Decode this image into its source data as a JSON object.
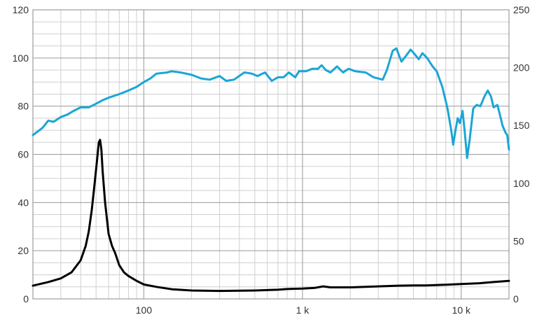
{
  "chart_data": {
    "type": "line",
    "title": "",
    "xlabel": "",
    "ylabel": "",
    "y2label": "",
    "x_scale": "log",
    "xlim": [
      20,
      20000
    ],
    "ylim": [
      0,
      120
    ],
    "y2lim": [
      0,
      250
    ],
    "grid": true,
    "legend": "none",
    "x_ticks": [
      100,
      1000,
      10000
    ],
    "x_tick_labels": [
      "100",
      "1 k",
      "10 k"
    ],
    "y_ticks": [
      0,
      20,
      40,
      60,
      80,
      100,
      120
    ],
    "y_tick_labels": [
      "0",
      "20",
      "40",
      "60",
      "80",
      "100",
      "120"
    ],
    "y2_ticks": [
      0,
      50,
      100,
      150,
      200,
      250
    ],
    "y2_tick_labels": [
      "0",
      "50",
      "100",
      "150",
      "200",
      "250"
    ],
    "series": [
      {
        "axis": "left",
        "color": "#1aa6d6",
        "points": [
          [
            20,
            68
          ],
          [
            23,
            71
          ],
          [
            25,
            74
          ],
          [
            27,
            73.5
          ],
          [
            30,
            75.5
          ],
          [
            33,
            76.5
          ],
          [
            36,
            78
          ],
          [
            40,
            79.5
          ],
          [
            45,
            79.5
          ],
          [
            50,
            81
          ],
          [
            55,
            82.5
          ],
          [
            60,
            83.5
          ],
          [
            70,
            85
          ],
          [
            80,
            86.5
          ],
          [
            90,
            88
          ],
          [
            100,
            90
          ],
          [
            110,
            91.5
          ],
          [
            120,
            93.5
          ],
          [
            140,
            94
          ],
          [
            150,
            94.5
          ],
          [
            170,
            94
          ],
          [
            200,
            93
          ],
          [
            230,
            91.5
          ],
          [
            260,
            91
          ],
          [
            300,
            92.5
          ],
          [
            330,
            90.5
          ],
          [
            370,
            91
          ],
          [
            430,
            94
          ],
          [
            480,
            93.5
          ],
          [
            520,
            92.5
          ],
          [
            580,
            94
          ],
          [
            640,
            90.5
          ],
          [
            700,
            92
          ],
          [
            760,
            92
          ],
          [
            820,
            94
          ],
          [
            900,
            92
          ],
          [
            950,
            94.5
          ],
          [
            1050,
            94.5
          ],
          [
            1150,
            95.5
          ],
          [
            1250,
            95.5
          ],
          [
            1320,
            97
          ],
          [
            1400,
            95
          ],
          [
            1500,
            94
          ],
          [
            1650,
            96.5
          ],
          [
            1800,
            94
          ],
          [
            1950,
            95.5
          ],
          [
            2150,
            94.5
          ],
          [
            2500,
            94
          ],
          [
            2800,
            92
          ],
          [
            3000,
            91.5
          ],
          [
            3200,
            91
          ],
          [
            3400,
            95
          ],
          [
            3700,
            103
          ],
          [
            3900,
            104
          ],
          [
            4200,
            98.5
          ],
          [
            4500,
            101
          ],
          [
            4800,
            103.5
          ],
          [
            5100,
            101.5
          ],
          [
            5400,
            99.5
          ],
          [
            5700,
            102
          ],
          [
            6100,
            100
          ],
          [
            6600,
            96.5
          ],
          [
            7000,
            94.5
          ],
          [
            7600,
            88
          ],
          [
            8200,
            79
          ],
          [
            8650,
            70
          ],
          [
            8900,
            64
          ],
          [
            9200,
            70
          ],
          [
            9500,
            75
          ],
          [
            9800,
            73
          ],
          [
            10200,
            78
          ],
          [
            10500,
            70
          ],
          [
            10900,
            58.5
          ],
          [
            11300,
            66
          ],
          [
            11900,
            79
          ],
          [
            12500,
            80.5
          ],
          [
            13200,
            80
          ],
          [
            14000,
            84
          ],
          [
            14700,
            86.5
          ],
          [
            15400,
            84
          ],
          [
            16000,
            79.5
          ],
          [
            16900,
            80.5
          ],
          [
            17600,
            76
          ],
          [
            18200,
            72
          ],
          [
            19000,
            69
          ],
          [
            19500,
            68
          ],
          [
            20000,
            62
          ]
        ]
      },
      {
        "axis": "left",
        "color": "#000000",
        "points": [
          [
            20,
            5.5
          ],
          [
            25,
            7
          ],
          [
            30,
            8.5
          ],
          [
            35,
            11
          ],
          [
            40,
            16
          ],
          [
            43,
            22
          ],
          [
            45,
            28
          ],
          [
            47,
            37
          ],
          [
            49,
            48
          ],
          [
            51,
            59
          ],
          [
            52,
            65
          ],
          [
            53,
            66
          ],
          [
            54,
            62
          ],
          [
            55,
            53
          ],
          [
            57,
            40
          ],
          [
            60,
            27
          ],
          [
            63,
            22
          ],
          [
            66,
            19
          ],
          [
            70,
            14
          ],
          [
            75,
            11
          ],
          [
            80,
            9.5
          ],
          [
            90,
            7.5
          ],
          [
            100,
            6
          ],
          [
            120,
            5
          ],
          [
            150,
            4
          ],
          [
            200,
            3.5
          ],
          [
            300,
            3.3
          ],
          [
            500,
            3.5
          ],
          [
            700,
            3.8
          ],
          [
            800,
            4.1
          ],
          [
            1000,
            4.3
          ],
          [
            1200,
            4.6
          ],
          [
            1350,
            5.2
          ],
          [
            1500,
            4.8
          ],
          [
            2000,
            4.8
          ],
          [
            3000,
            5.2
          ],
          [
            4000,
            5.5
          ],
          [
            5000,
            5.6
          ],
          [
            6000,
            5.6
          ],
          [
            8000,
            5.9
          ],
          [
            10000,
            6.2
          ],
          [
            13000,
            6.5
          ],
          [
            16000,
            7
          ],
          [
            20000,
            7.5
          ]
        ]
      }
    ]
  }
}
